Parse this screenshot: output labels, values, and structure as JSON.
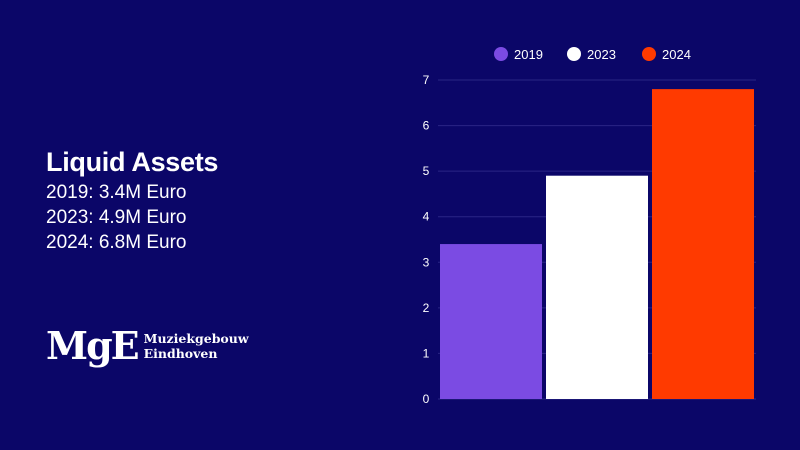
{
  "slide": {
    "title": "Liquid Assets",
    "lines": [
      "2019: 3.4M Euro",
      "2023: 4.9M Euro",
      "2024: 6.8M Euro"
    ]
  },
  "logo": {
    "mark": "MgE",
    "name_line1": "Muziekgebouw",
    "name_line2": "Eindhoven"
  },
  "colors": {
    "background": "#0b0668",
    "gridline": "#2a2585"
  },
  "chart_data": {
    "type": "bar",
    "categories": [
      "2019",
      "2023",
      "2024"
    ],
    "values": [
      3.4,
      4.9,
      6.8
    ],
    "colors": [
      "#7b4be3",
      "#ffffff",
      "#ff3a00"
    ],
    "legend": [
      "2019",
      "2023",
      "2024"
    ],
    "legend_position": "top",
    "ylim": [
      0,
      7
    ],
    "yticks": [
      0,
      1,
      2,
      3,
      4,
      5,
      6,
      7
    ],
    "grid": true
  }
}
